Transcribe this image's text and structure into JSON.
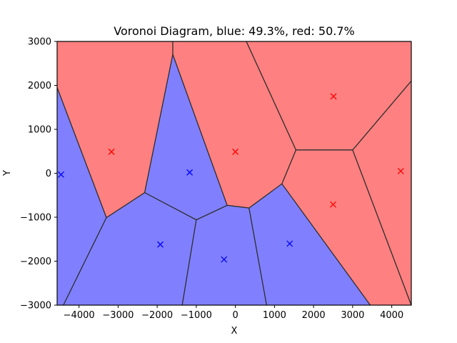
{
  "chart_data": {
    "type": "voronoi",
    "title": "Voronoi Diagram, blue: 49.3%, red: 50.7%",
    "xlabel": "X",
    "ylabel": "Y",
    "xlim": [
      -4560,
      4500
    ],
    "ylim": [
      -3000,
      3000
    ],
    "xticks": [
      -4000,
      -3000,
      -2000,
      -1000,
      0,
      1000,
      2000,
      3000,
      4000
    ],
    "yticks": [
      -3000,
      -2000,
      -1000,
      0,
      1000,
      2000,
      3000
    ],
    "colors": {
      "red": "#ff8080",
      "blue": "#8080ff",
      "edge": "#2b2b2b"
    },
    "markers": [
      {
        "x": -3170,
        "y": 490,
        "color": "red"
      },
      {
        "x": 0,
        "y": 490,
        "color": "red"
      },
      {
        "x": 2510,
        "y": 1750,
        "color": "red"
      },
      {
        "x": 2500,
        "y": -710,
        "color": "red"
      },
      {
        "x": 4230,
        "y": 50,
        "color": "red"
      },
      {
        "x": -4460,
        "y": -30,
        "color": "blue"
      },
      {
        "x": -1170,
        "y": 20,
        "color": "blue"
      },
      {
        "x": -1920,
        "y": -1620,
        "color": "blue"
      },
      {
        "x": -290,
        "y": -1960,
        "color": "blue"
      },
      {
        "x": 1390,
        "y": -1600,
        "color": "blue"
      }
    ],
    "regions": [
      {
        "color": "red",
        "vertices": [
          [
            -4560,
            3000
          ],
          [
            -1600,
            3000
          ],
          [
            -1600,
            2700
          ],
          [
            -2320,
            -440
          ],
          [
            -3300,
            -1010
          ],
          [
            -4560,
            1950
          ]
        ]
      },
      {
        "color": "red",
        "vertices": [
          [
            -1600,
            3000
          ],
          [
            280,
            3000
          ],
          [
            1550,
            530
          ],
          [
            1190,
            -240
          ],
          [
            350,
            -790
          ],
          [
            -210,
            -730
          ],
          [
            -1600,
            2700
          ]
        ]
      },
      {
        "color": "red",
        "vertices": [
          [
            280,
            3000
          ],
          [
            4500,
            3000
          ],
          [
            4500,
            2100
          ],
          [
            3000,
            530
          ],
          [
            1550,
            530
          ]
        ]
      },
      {
        "color": "red",
        "vertices": [
          [
            1550,
            530
          ],
          [
            3000,
            530
          ],
          [
            4500,
            -3000
          ],
          [
            3450,
            -3000
          ],
          [
            1190,
            -240
          ]
        ]
      },
      {
        "color": "red",
        "vertices": [
          [
            3000,
            530
          ],
          [
            4500,
            2100
          ],
          [
            4500,
            -3000
          ]
        ]
      },
      {
        "color": "blue",
        "vertices": [
          [
            -4560,
            1950
          ],
          [
            -3300,
            -1010
          ],
          [
            -4400,
            -3000
          ],
          [
            -4560,
            -3000
          ]
        ]
      },
      {
        "color": "blue",
        "vertices": [
          [
            -1600,
            2700
          ],
          [
            -210,
            -730
          ],
          [
            -1000,
            -1060
          ],
          [
            -2320,
            -440
          ]
        ]
      },
      {
        "color": "blue",
        "vertices": [
          [
            -2320,
            -440
          ],
          [
            -1000,
            -1060
          ],
          [
            -1360,
            -3000
          ],
          [
            -4400,
            -3000
          ],
          [
            -3300,
            -1010
          ]
        ]
      },
      {
        "color": "blue",
        "vertices": [
          [
            -1000,
            -1060
          ],
          [
            -210,
            -730
          ],
          [
            350,
            -790
          ],
          [
            800,
            -3000
          ],
          [
            -1360,
            -3000
          ]
        ]
      },
      {
        "color": "blue",
        "vertices": [
          [
            350,
            -790
          ],
          [
            1190,
            -240
          ],
          [
            3450,
            -3000
          ],
          [
            800,
            -3000
          ]
        ]
      }
    ]
  }
}
